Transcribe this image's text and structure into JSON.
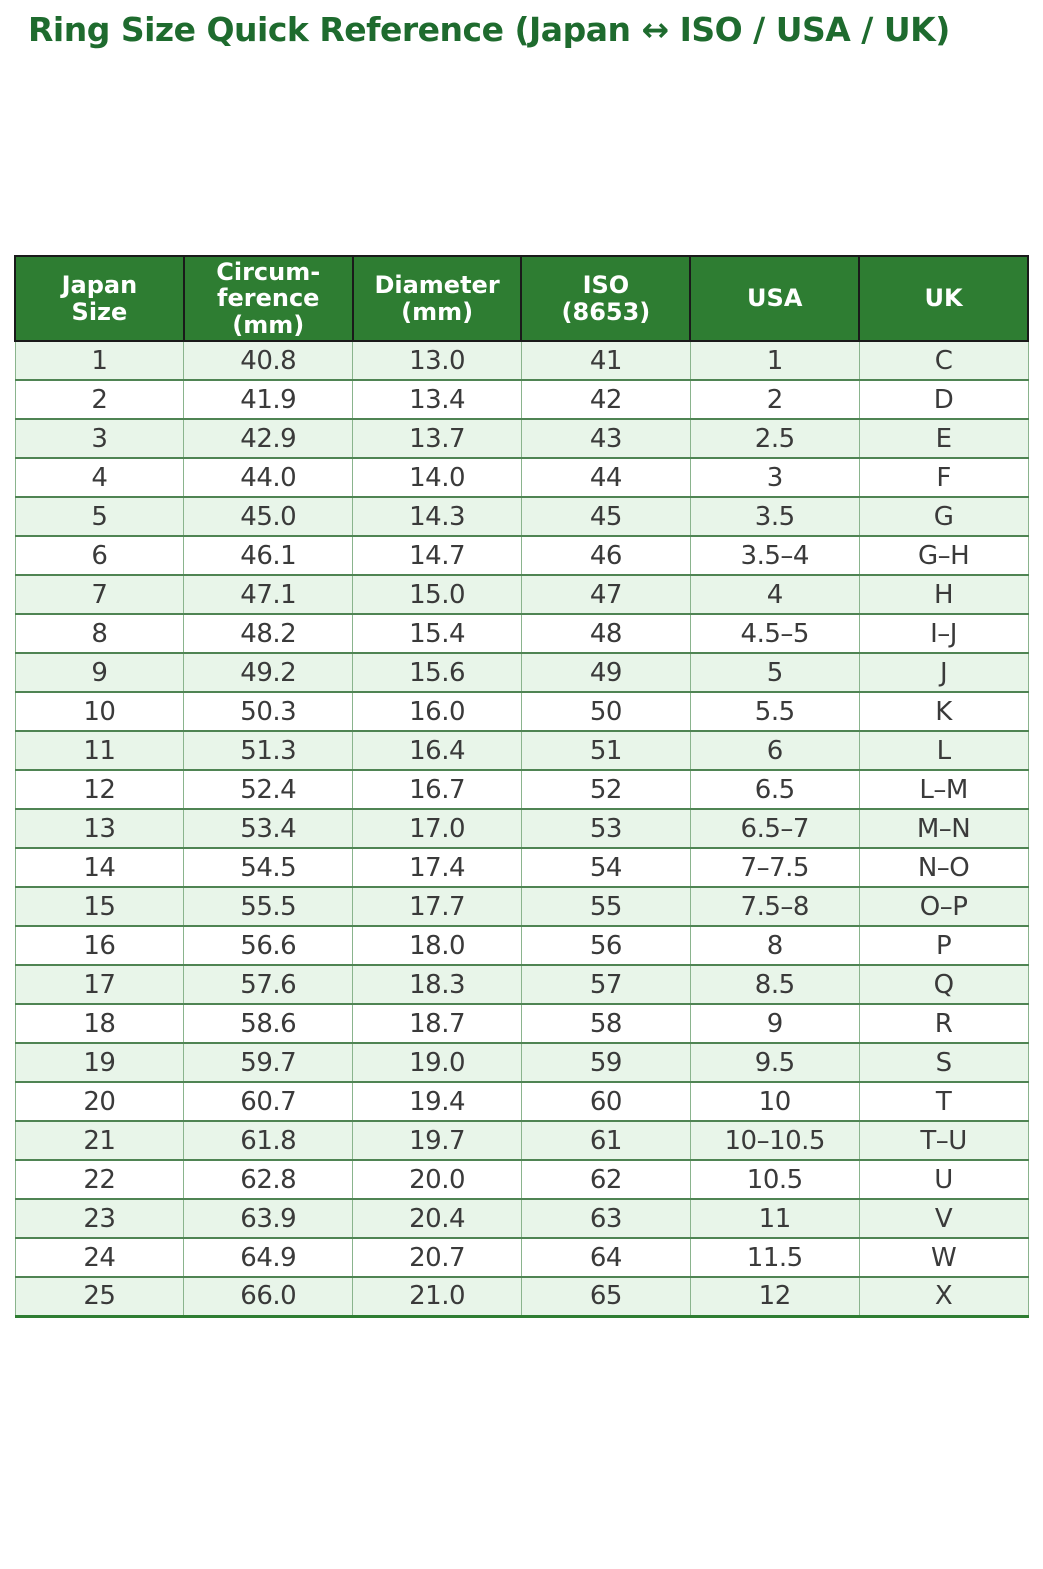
{
  "page": {
    "title": "Ring Size Quick Reference (Japan ↔ ISO / USA / UK)"
  },
  "colors": {
    "title_green": "#1e6b2e",
    "header_bg": "#2e7d32",
    "header_text": "#ffffff",
    "row_alt_bg": "#e8f5e9",
    "row_bg": "#ffffff",
    "body_text": "#3a3a3a",
    "border_dark": "#1a1a1a",
    "border_row": "#4f8453",
    "border_col": "#8ab48d",
    "border_bottom_green": "#2e7d32"
  },
  "chart_data": {
    "type": "table",
    "title": "Ring Size Quick Reference (Japan ↔ ISO / USA / UK)",
    "columns": [
      "Japan\nSize",
      "Circum-\nference\n(mm)",
      "Diameter\n(mm)",
      "ISO\n(8653)",
      "USA",
      "UK"
    ],
    "rows": [
      [
        "1",
        "40.8",
        "13.0",
        "41",
        "1",
        "C"
      ],
      [
        "2",
        "41.9",
        "13.4",
        "42",
        "2",
        "D"
      ],
      [
        "3",
        "42.9",
        "13.7",
        "43",
        "2.5",
        "E"
      ],
      [
        "4",
        "44.0",
        "14.0",
        "44",
        "3",
        "F"
      ],
      [
        "5",
        "45.0",
        "14.3",
        "45",
        "3.5",
        "G"
      ],
      [
        "6",
        "46.1",
        "14.7",
        "46",
        "3.5–4",
        "G–H"
      ],
      [
        "7",
        "47.1",
        "15.0",
        "47",
        "4",
        "H"
      ],
      [
        "8",
        "48.2",
        "15.4",
        "48",
        "4.5–5",
        "I–J"
      ],
      [
        "9",
        "49.2",
        "15.6",
        "49",
        "5",
        "J"
      ],
      [
        "10",
        "50.3",
        "16.0",
        "50",
        "5.5",
        "K"
      ],
      [
        "11",
        "51.3",
        "16.4",
        "51",
        "6",
        "L"
      ],
      [
        "12",
        "52.4",
        "16.7",
        "52",
        "6.5",
        "L–M"
      ],
      [
        "13",
        "53.4",
        "17.0",
        "53",
        "6.5–7",
        "M–N"
      ],
      [
        "14",
        "54.5",
        "17.4",
        "54",
        "7–7.5",
        "N–O"
      ],
      [
        "15",
        "55.5",
        "17.7",
        "55",
        "7.5–8",
        "O–P"
      ],
      [
        "16",
        "56.6",
        "18.0",
        "56",
        "8",
        "P"
      ],
      [
        "17",
        "57.6",
        "18.3",
        "57",
        "8.5",
        "Q"
      ],
      [
        "18",
        "58.6",
        "18.7",
        "58",
        "9",
        "R"
      ],
      [
        "19",
        "59.7",
        "19.0",
        "59",
        "9.5",
        "S"
      ],
      [
        "20",
        "60.7",
        "19.4",
        "60",
        "10",
        "T"
      ],
      [
        "21",
        "61.8",
        "19.7",
        "61",
        "10–10.5",
        "T–U"
      ],
      [
        "22",
        "62.8",
        "20.0",
        "62",
        "10.5",
        "U"
      ],
      [
        "23",
        "63.9",
        "20.4",
        "63",
        "11",
        "V"
      ],
      [
        "24",
        "64.9",
        "20.7",
        "64",
        "11.5",
        "W"
      ],
      [
        "25",
        "66.0",
        "21.0",
        "65",
        "12",
        "X"
      ]
    ]
  }
}
